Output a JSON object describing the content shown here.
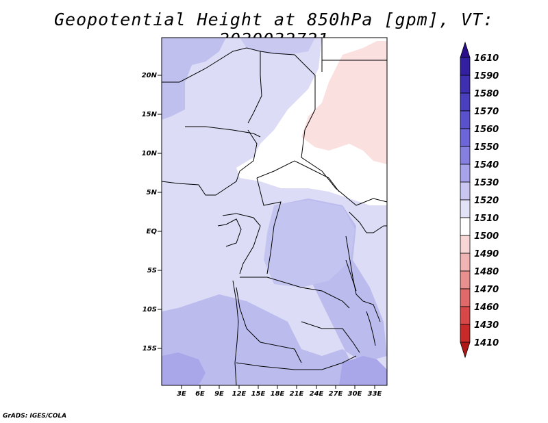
{
  "title": "Geopotential Height at 850hPa [gpm], VT: 2020032721",
  "credit": "GrADS: IGES/COLA",
  "map": {
    "lat_labels": [
      "20N",
      "15N",
      "10N",
      "5N",
      "EQ",
      "5S",
      "10S",
      "15S"
    ],
    "lon_labels": [
      "3E",
      "6E",
      "9E",
      "12E",
      "15E",
      "18E",
      "21E",
      "24E",
      "27E",
      "30E",
      "33E"
    ]
  },
  "colorbar": {
    "levels": [
      "1610",
      "1590",
      "1580",
      "1570",
      "1560",
      "1550",
      "1540",
      "1530",
      "1520",
      "1510",
      "1500",
      "1490",
      "1480",
      "1470",
      "1460",
      "1430",
      "1410"
    ],
    "colors": [
      "#2a0e8a",
      "#3320a0",
      "#3d2fb0",
      "#4a3fbf",
      "#5a52cc",
      "#6d66d8",
      "#8580e0",
      "#a6a3ea",
      "#c9c7f2",
      "#e3e3f8",
      "#ffffff",
      "#f8d6d6",
      "#f0b4b4",
      "#e89090",
      "#e06a6a",
      "#d84848",
      "#c82a2a",
      "#b01818"
    ]
  }
}
